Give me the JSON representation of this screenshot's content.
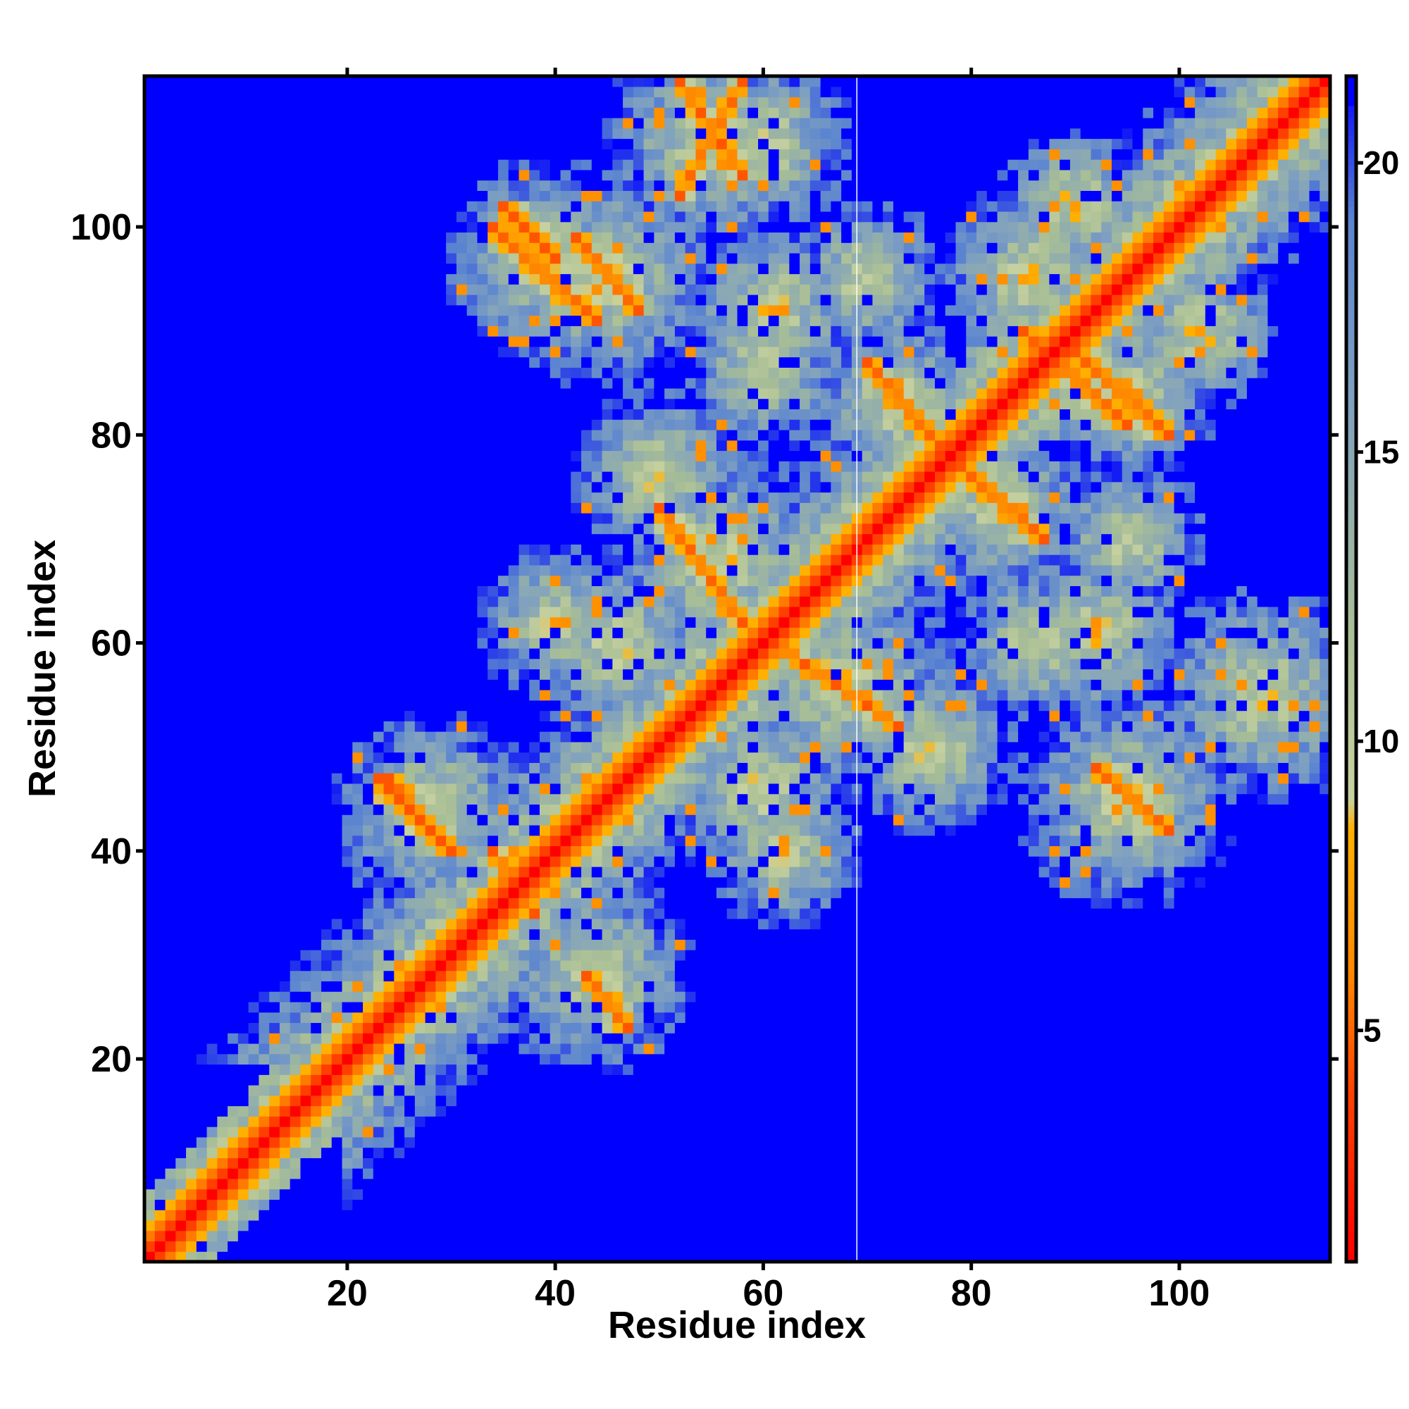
{
  "chart_data": {
    "type": "heatmap",
    "title": "",
    "xlabel": "Residue index",
    "ylabel": "Residue index",
    "n_residues": 114,
    "xlim": [
      1,
      114
    ],
    "ylim": [
      1,
      114
    ],
    "x_ticks": [
      20,
      40,
      60,
      80,
      100
    ],
    "y_ticks": [
      20,
      40,
      60,
      80,
      100
    ],
    "colorbar": {
      "ticks": [
        5,
        10,
        15,
        20
      ],
      "range": [
        1,
        21.5
      ],
      "stops": [
        {
          "value": 1,
          "color": "#ff0000"
        },
        {
          "value": 4,
          "color": "#ff4400"
        },
        {
          "value": 6,
          "color": "#ff8800"
        },
        {
          "value": 8.5,
          "color": "#ffb000"
        },
        {
          "value": 9,
          "color": "#c8d2a0"
        },
        {
          "value": 12,
          "color": "#a8be96"
        },
        {
          "value": 16,
          "color": "#7fa0c0"
        },
        {
          "value": 19,
          "color": "#5a84d0"
        },
        {
          "value": 21.5,
          "color": "#0000ff"
        }
      ],
      "saturation_color": "#0000ff"
    },
    "cutoff": 21,
    "strands": [
      [
        4,
        11
      ],
      [
        15,
        22
      ],
      [
        26,
        34
      ],
      [
        41,
        48
      ],
      [
        52,
        59
      ],
      [
        63,
        70
      ],
      [
        75,
        82
      ],
      [
        86,
        94
      ],
      [
        98,
        105
      ],
      [
        108,
        113
      ]
    ],
    "sheet_pairs": [
      {
        "a": [
          2,
          14
        ],
        "b": [
          2,
          14
        ],
        "type": "parallel"
      },
      {
        "a": [
          24,
          28
        ],
        "b": [
          42,
          47
        ],
        "type": "antiparallel"
      },
      {
        "a": [
          43,
          47
        ],
        "b": [
          23,
          28
        ],
        "type": "antiparallel"
      },
      {
        "a": [
          23,
          30
        ],
        "b": [
          40,
          47
        ],
        "type": "antiparallel"
      },
      {
        "a": [
          34,
          38
        ],
        "b": [
          34,
          40
        ],
        "type": "antiparallel"
      },
      {
        "a": [
          50,
          58
        ],
        "b": [
          62,
          73
        ],
        "type": "antiparallel"
      },
      {
        "a": [
          61,
          73
        ],
        "b": [
          52,
          60
        ],
        "type": "antiparallel"
      },
      {
        "a": [
          42,
          48
        ],
        "b": [
          92,
          99
        ],
        "type": "antiparallel"
      },
      {
        "a": [
          52,
          58
        ],
        "b": [
          105,
          114
        ],
        "type": "antiparallel"
      },
      {
        "a": [
          34,
          44
        ],
        "b": [
          91,
          100
        ],
        "type": "antiparallel"
      },
      {
        "a": [
          70,
          77
        ],
        "b": [
          79,
          87
        ],
        "type": "antiparallel"
      },
      {
        "a": [
          79,
          87
        ],
        "b": [
          70,
          77
        ],
        "type": "antiparallel"
      },
      {
        "a": [
          85,
          95
        ],
        "b": [
          81,
          90
        ],
        "type": "antiparallel"
      },
      {
        "a": [
          90,
          99
        ],
        "b": [
          80,
          88
        ],
        "type": "antiparallel"
      },
      {
        "a": [
          52,
          58
        ],
        "b": [
          103,
          114
        ],
        "type": "parallel"
      },
      {
        "a": [
          92,
          99
        ],
        "b": [
          42,
          48
        ],
        "type": "antiparallel"
      },
      {
        "a": [
          35,
          40
        ],
        "b": [
          97,
          102
        ],
        "type": "antiparallel"
      }
    ],
    "gap_column": 69
  }
}
